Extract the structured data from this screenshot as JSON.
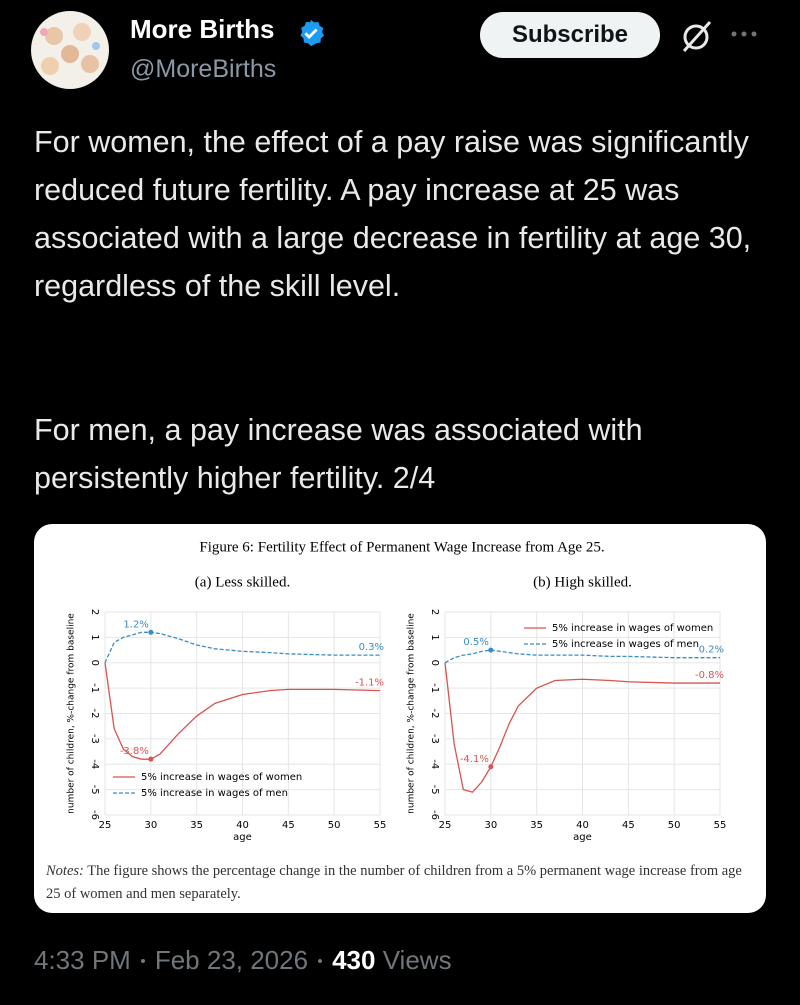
{
  "author": {
    "name": "More Births",
    "handle": "@MoreBirths"
  },
  "subscribe": "Subscribe",
  "text": [
    "For women, the effect of a pay raise was significantly reduced future fertility. A pay increase at 25 was associated with a large decrease in fertility at age 30, regardless of the skill level.",
    "For men, a pay increase was associated with persistently higher fertility. 2/4"
  ],
  "figure": {
    "title": "Figure 6: Fertility Effect of Permanent Wage Increase from Age 25.",
    "notes_label": "Notes:",
    "notes": "The figure shows the percentage change in the number of children from a 5% permanent wage increase from age 25 of women and men separately.",
    "chart_data": [
      {
        "type": "line",
        "subtitle": "(a) Less skilled.",
        "xlabel": "age",
        "ylabel": "number of children, %-change from baseline",
        "x": [
          25,
          26,
          27,
          28,
          29,
          30,
          31,
          32,
          33,
          35,
          37,
          40,
          43,
          45,
          50,
          55
        ],
        "xlim": [
          25,
          55
        ],
        "xticks": [
          25,
          30,
          35,
          40,
          45,
          50,
          55
        ],
        "ylim": [
          -6,
          2
        ],
        "yticks": [
          -6,
          -5,
          -4,
          -3,
          -2,
          -1,
          0,
          1,
          2
        ],
        "grid": true,
        "legend": "lower left",
        "series": [
          {
            "name": "5% increase in wages of women",
            "color": "#d9534f",
            "dash": false,
            "values": [
              0,
              -2.6,
              -3.4,
              -3.7,
              -3.8,
              -3.8,
              -3.6,
              -3.2,
              -2.8,
              -2.1,
              -1.6,
              -1.25,
              -1.1,
              -1.05,
              -1.05,
              -1.1
            ]
          },
          {
            "name": "5% increase in wages of men",
            "color": "#3a8cc4",
            "dash": true,
            "values": [
              0,
              0.8,
              1.0,
              1.1,
              1.2,
              1.2,
              1.15,
              1.05,
              0.95,
              0.7,
              0.55,
              0.45,
              0.4,
              0.35,
              0.3,
              0.3
            ]
          }
        ],
        "annotations": [
          {
            "text": "1.2%",
            "x": 30,
            "y": 1.2,
            "series": 1
          },
          {
            "text": "0.3%",
            "x": 55,
            "y": 0.3,
            "series": 1
          },
          {
            "text": "-1.1%",
            "x": 55,
            "y": -1.1,
            "series": 0
          },
          {
            "text": "-3.8%",
            "x": 30,
            "y": -3.8,
            "series": 0
          }
        ]
      },
      {
        "type": "line",
        "subtitle": "(b) High skilled.",
        "xlabel": "age",
        "ylabel": "number of children, %-change from baseline",
        "x": [
          25,
          26,
          27,
          28,
          29,
          30,
          31,
          32,
          33,
          35,
          37,
          40,
          43,
          45,
          50,
          55
        ],
        "xlim": [
          25,
          55
        ],
        "xticks": [
          25,
          30,
          35,
          40,
          45,
          50,
          55
        ],
        "ylim": [
          -6,
          2
        ],
        "yticks": [
          -6,
          -5,
          -4,
          -3,
          -2,
          -1,
          0,
          1,
          2
        ],
        "grid": true,
        "legend": "upper right",
        "series": [
          {
            "name": "5% increase in wages of women",
            "color": "#d9534f",
            "dash": false,
            "values": [
              0,
              -3.2,
              -5.0,
              -5.1,
              -4.7,
              -4.1,
              -3.3,
              -2.4,
              -1.7,
              -1.0,
              -0.7,
              -0.65,
              -0.7,
              -0.75,
              -0.8,
              -0.8
            ]
          },
          {
            "name": "5% increase in wages of men",
            "color": "#3a8cc4",
            "dash": true,
            "values": [
              0,
              0.2,
              0.3,
              0.35,
              0.45,
              0.5,
              0.45,
              0.4,
              0.35,
              0.3,
              0.3,
              0.3,
              0.25,
              0.25,
              0.2,
              0.2
            ]
          }
        ],
        "annotations": [
          {
            "text": "0.5%",
            "x": 30,
            "y": 0.5,
            "series": 1
          },
          {
            "text": "0.2%",
            "x": 55,
            "y": 0.2,
            "series": 1
          },
          {
            "text": "-0.8%",
            "x": 55,
            "y": -0.8,
            "series": 0
          },
          {
            "text": "-4.1%",
            "x": 30,
            "y": -4.1,
            "series": 0
          }
        ]
      }
    ]
  },
  "footer": {
    "time": "4:33 PM",
    "date": "Feb 23, 2026",
    "views": 430,
    "views_label": "Views"
  }
}
